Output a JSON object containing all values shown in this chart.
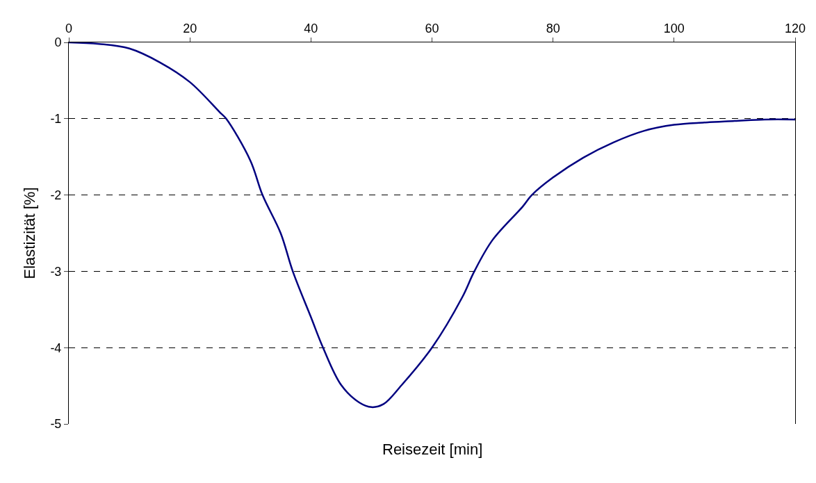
{
  "chart_data": {
    "type": "line",
    "xlabel": "Reisezeit [min]",
    "ylabel": "Elastizität [%]",
    "xlim": [
      0,
      120
    ],
    "xticks": [
      0,
      20,
      40,
      60,
      80,
      100,
      120
    ],
    "ylim": [
      -5,
      0
    ],
    "yticks": [
      -5,
      -4,
      -3,
      -2,
      -1,
      0
    ],
    "grid": "y",
    "marker": "none",
    "line_style": "solid",
    "series": [
      {
        "color": "#000080",
        "x": [
          0,
          5,
          10,
          15,
          20,
          25,
          26,
          30,
          32,
          35,
          37,
          40,
          42,
          45,
          48,
          50,
          52,
          55,
          60,
          65,
          67,
          70,
          75,
          76.5,
          80,
          85,
          90,
          95,
          100,
          105,
          110,
          115,
          120
        ],
        "values": [
          0,
          -0.02,
          -0.08,
          -0.26,
          -0.52,
          -0.92,
          -1.0,
          -1.55,
          -2.0,
          -2.5,
          -3.0,
          -3.6,
          -4.0,
          -4.49,
          -4.72,
          -4.78,
          -4.74,
          -4.49,
          -4.0,
          -3.34,
          -3.0,
          -2.59,
          -2.15,
          -2.0,
          -1.77,
          -1.51,
          -1.31,
          -1.16,
          -1.08,
          -1.05,
          -1.03,
          -1.01,
          -1.01
        ]
      }
    ]
  }
}
